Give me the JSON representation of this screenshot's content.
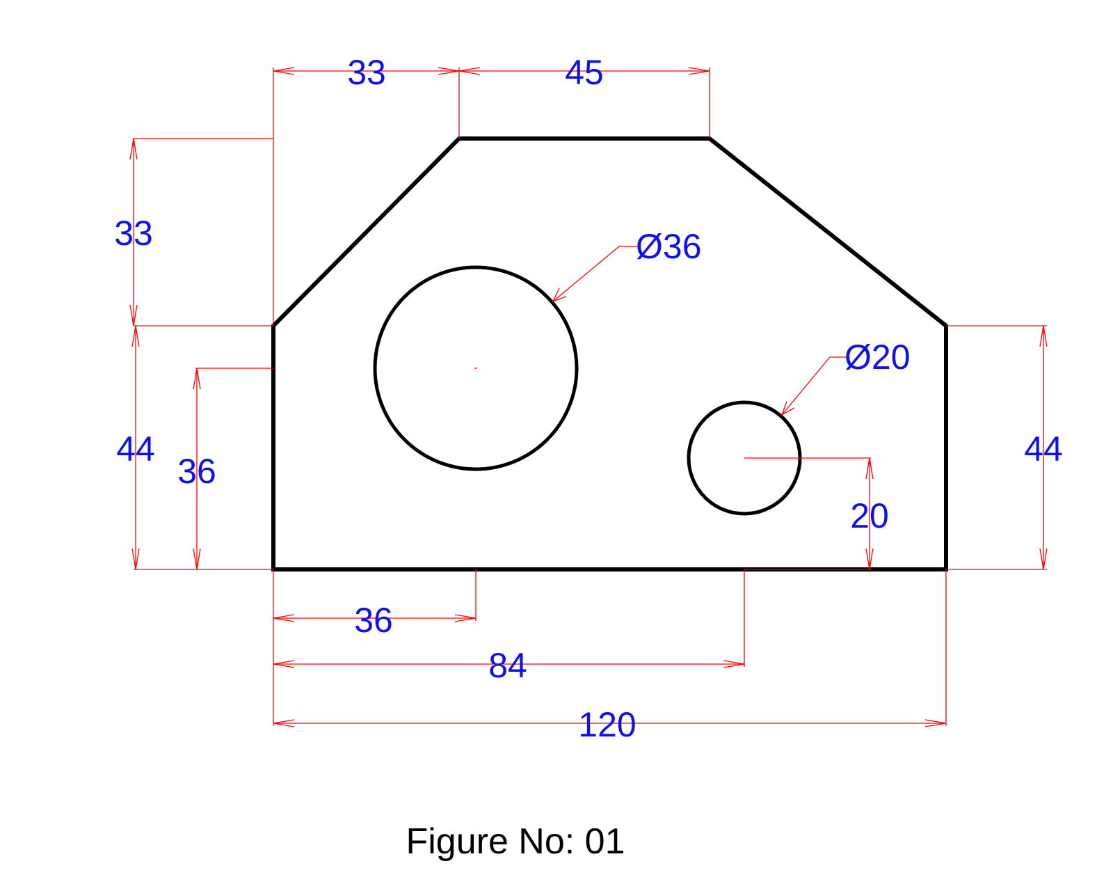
{
  "caption": "Figure No: 01",
  "colors": {
    "outline": "#000000",
    "dimension_line": "#ff0000",
    "dimension_text": "#1010ee"
  },
  "dimensions": {
    "top_left_offset": "33",
    "top_edge": "45",
    "left_upper_height": "33",
    "left_side_height": "44",
    "hole1_center_height": "36",
    "right_side_height": "44",
    "hole2_center_height": "20",
    "hole1_center_x": "36",
    "hole2_center_x": "84",
    "overall_width": "120",
    "hole1_diameter": "Ø36",
    "hole2_diameter": "Ø20"
  }
}
